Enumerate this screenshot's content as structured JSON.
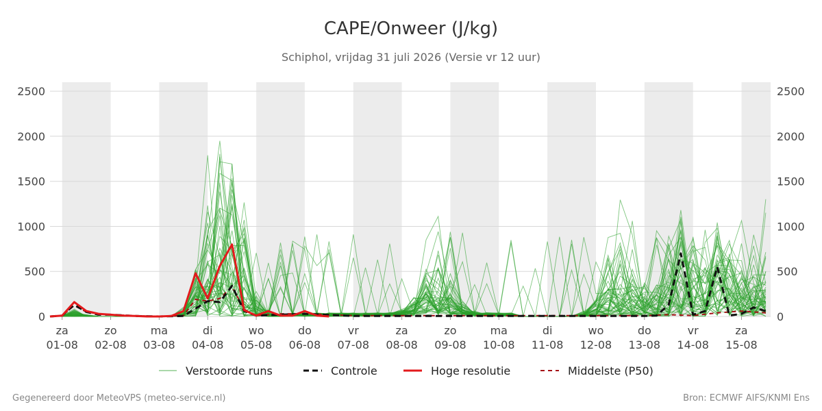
{
  "title": "CAPE/Onweer (J/kg)",
  "subtitle": "Schiphol, vrijdag 31 juli 2026 (Versie vr 12 uur)",
  "footer_left": "Gegenereerd door MeteoVPS (meteo-service.nl)",
  "footer_right": "Bron: ECMWF AIFS/KNMI Ens",
  "colors": {
    "ensemble": "#2ca02c",
    "control": "#111111",
    "highres": "#e31a1c",
    "median": "#a50f15",
    "band": "#ececec",
    "grid": "#d8d8d8"
  },
  "chart_data": {
    "type": "line",
    "ylim": [
      0,
      2600
    ],
    "yticks": [
      0,
      500,
      1000,
      1500,
      2000,
      2500
    ],
    "xlim": [
      -0.25,
      14.6
    ],
    "x_ticks": [
      {
        "x": 0,
        "day": "za",
        "date": "01-08"
      },
      {
        "x": 1,
        "day": "zo",
        "date": "02-08"
      },
      {
        "x": 2,
        "day": "ma",
        "date": "03-08"
      },
      {
        "x": 3,
        "day": "di",
        "date": "04-08"
      },
      {
        "x": 4,
        "day": "wo",
        "date": "05-08"
      },
      {
        "x": 5,
        "day": "do",
        "date": "06-08"
      },
      {
        "x": 6,
        "day": "vr",
        "date": "07-08"
      },
      {
        "x": 7,
        "day": "za",
        "date": "08-08"
      },
      {
        "x": 8,
        "day": "zo",
        "date": "09-08"
      },
      {
        "x": 9,
        "day": "ma",
        "date": "10-08"
      },
      {
        "x": 10,
        "day": "di",
        "date": "11-08"
      },
      {
        "x": 11,
        "day": "wo",
        "date": "12-08"
      },
      {
        "x": 12,
        "day": "do",
        "date": "13-08"
      },
      {
        "x": 13,
        "day": "vr",
        "date": "14-08"
      },
      {
        "x": 14,
        "day": "za",
        "date": "15-08"
      }
    ],
    "shaded_days": [
      [
        0,
        1
      ],
      [
        2,
        3
      ],
      [
        4,
        5
      ],
      [
        6,
        7
      ],
      [
        8,
        9
      ],
      [
        10,
        11
      ],
      [
        12,
        13
      ],
      [
        14,
        14.6
      ]
    ],
    "legend": [
      "Verstoorde runs",
      "Controle",
      "Hoge resolutie",
      "Middelste (P50)"
    ],
    "series": [
      {
        "name": "Hoge resolutie",
        "x": [
          -0.25,
          0,
          0.25,
          0.5,
          0.75,
          1,
          1.25,
          1.5,
          1.75,
          2,
          2.25,
          2.5,
          2.75,
          3,
          3.25,
          3.5,
          3.75,
          4,
          4.25,
          4.5,
          4.75,
          5,
          5.25,
          5.5
        ],
        "y": [
          0,
          10,
          160,
          60,
          30,
          20,
          10,
          5,
          0,
          0,
          5,
          60,
          480,
          200,
          560,
          800,
          70,
          10,
          60,
          10,
          10,
          60,
          10,
          0
        ]
      },
      {
        "name": "Controle",
        "x": [
          -0.25,
          0,
          0.25,
          0.5,
          0.75,
          1,
          1.5,
          2,
          2.5,
          3,
          3.25,
          3.5,
          3.75,
          4,
          4.5,
          5,
          6,
          7,
          8,
          9,
          10,
          11,
          12,
          12.25,
          12.5,
          12.75,
          13,
          13.25,
          13.5,
          13.75,
          14,
          14.25,
          14.5
        ],
        "y": [
          0,
          10,
          130,
          50,
          20,
          20,
          5,
          0,
          5,
          170,
          160,
          340,
          60,
          10,
          20,
          30,
          5,
          5,
          5,
          5,
          5,
          5,
          5,
          10,
          130,
          700,
          20,
          60,
          550,
          10,
          30,
          100,
          60
        ]
      },
      {
        "name": "Middelste (P50)",
        "x": [
          -0.25,
          0,
          0.25,
          0.5,
          0.75,
          1,
          2,
          2.5,
          2.75,
          3,
          3.25,
          3.5,
          3.75,
          4,
          4.5,
          5,
          6,
          7,
          8,
          9,
          10,
          11,
          12,
          12.5,
          13,
          13.5,
          14,
          14.5
        ],
        "y": [
          0,
          10,
          120,
          50,
          30,
          20,
          0,
          10,
          190,
          170,
          200,
          330,
          80,
          10,
          30,
          30,
          10,
          10,
          10,
          10,
          10,
          10,
          10,
          20,
          10,
          40,
          60,
          40
        ]
      }
    ]
  }
}
